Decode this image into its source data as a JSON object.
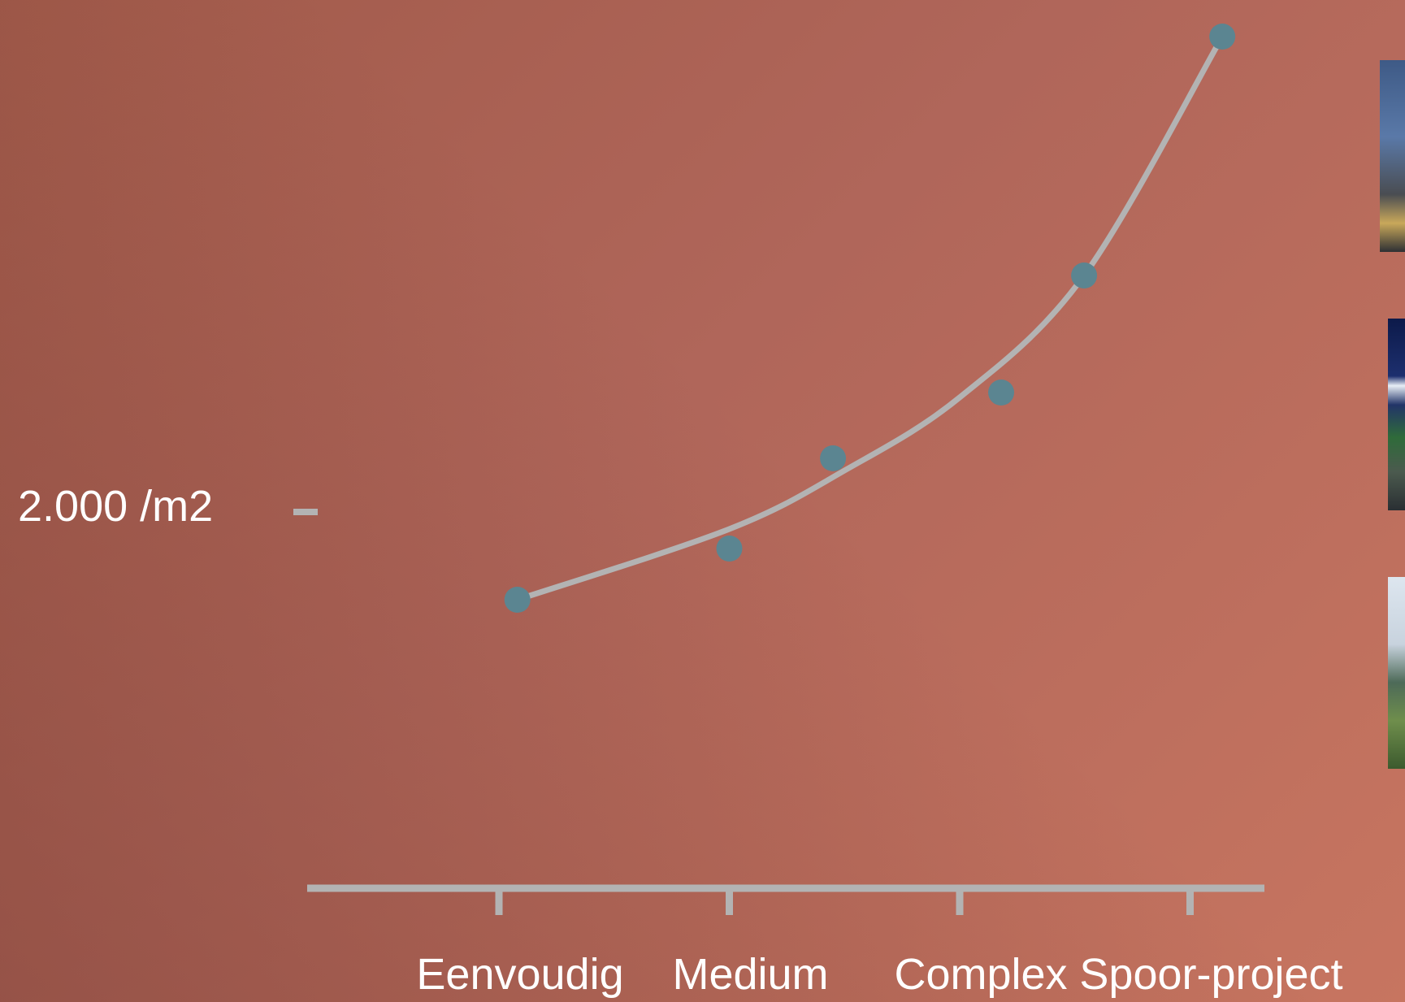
{
  "colors": {
    "axis": "#b3b3b3",
    "curve": "#b3b3b3",
    "point": "#5b8591",
    "text": "#ffffff"
  },
  "y_axis_label": "2.000 /m2",
  "chart_data": {
    "type": "scatter",
    "title": "",
    "xlabel": "",
    "ylabel": "",
    "categories": [
      "Eenvoudig",
      "Medium",
      "Complex",
      "Spoor-project"
    ],
    "y_ticks": [
      "2.000 /m2"
    ],
    "y_tick_values": [
      2000
    ],
    "series": [
      {
        "points": [
          {
            "x": 1.08,
            "y": 1640
          },
          {
            "x": 2.0,
            "y": 1850
          },
          {
            "x": 2.45,
            "y": 2220
          },
          {
            "x": 3.18,
            "y": 2490
          },
          {
            "x": 3.54,
            "y": 2970
          },
          {
            "x": 4.14,
            "y": 3950
          }
        ]
      }
    ],
    "trend_line": [
      {
        "x": 1.08,
        "y": 1640
      },
      {
        "x": 2.0,
        "y": 1930
      },
      {
        "x": 2.5,
        "y": 2170
      },
      {
        "x": 3.0,
        "y": 2470
      },
      {
        "x": 3.54,
        "y": 2970
      },
      {
        "x": 4.14,
        "y": 3950
      }
    ],
    "trend_style": "smooth-curve",
    "grid": false,
    "legend": "none"
  },
  "thumbnails": [
    {
      "icon": "rail-yard-photo"
    },
    {
      "icon": "night-station-photo"
    },
    {
      "icon": "green-area-photo"
    }
  ]
}
